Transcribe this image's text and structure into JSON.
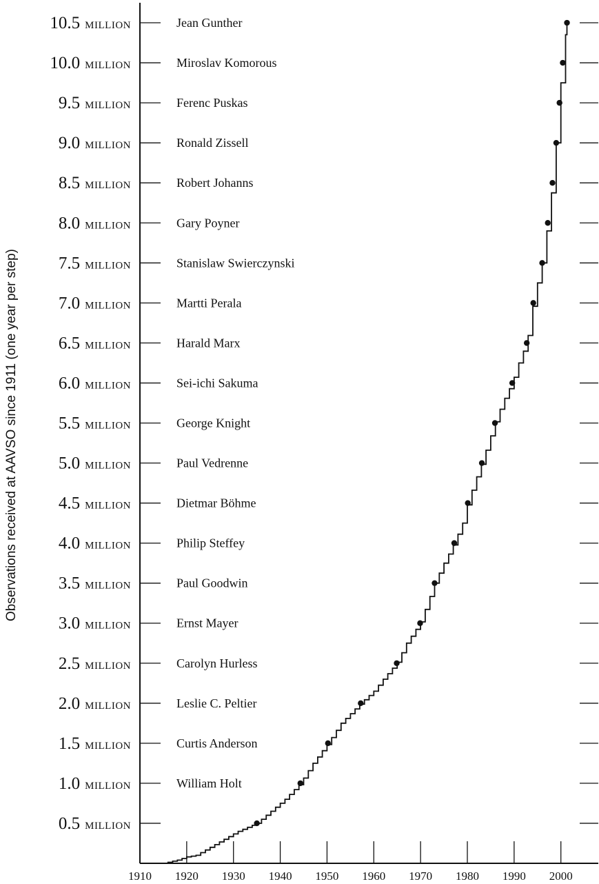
{
  "chart_data": {
    "type": "line",
    "title": "",
    "ylabel": "Observations received at AAVSO since 1911 (one year per step)",
    "xlabel": "",
    "xlim": [
      1910,
      2008
    ],
    "ylim": [
      0,
      10.75
    ],
    "y_unit": "Million",
    "x_ticks": [
      "1910",
      "1920",
      "1930",
      "1940",
      "1950",
      "1960",
      "1970",
      "1980",
      "1990",
      "2000"
    ],
    "y_ticks": [
      {
        "number": "0.5",
        "unit": "Million"
      },
      {
        "number": "1.0",
        "unit": "Million"
      },
      {
        "number": "1.5",
        "unit": "Million"
      },
      {
        "number": "2.0",
        "unit": "Million"
      },
      {
        "number": "2.5",
        "unit": "Million"
      },
      {
        "number": "3.0",
        "unit": "Million"
      },
      {
        "number": "3.5",
        "unit": "Million"
      },
      {
        "number": "4.0",
        "unit": "Million"
      },
      {
        "number": "4.5",
        "unit": "Million"
      },
      {
        "number": "5.0",
        "unit": "Million"
      },
      {
        "number": "5.5",
        "unit": "Million"
      },
      {
        "number": "6.0",
        "unit": "Million"
      },
      {
        "number": "6.5",
        "unit": "Million"
      },
      {
        "number": "7.0",
        "unit": "Million"
      },
      {
        "number": "7.5",
        "unit": "Million"
      },
      {
        "number": "8.0",
        "unit": "Million"
      },
      {
        "number": "8.5",
        "unit": "Million"
      },
      {
        "number": "9.0",
        "unit": "Million"
      },
      {
        "number": "9.5",
        "unit": "Million"
      },
      {
        "number": "10.0",
        "unit": "Million"
      },
      {
        "number": "10.5",
        "unit": "Million"
      }
    ],
    "milestones": [
      {
        "value": 0.5,
        "observer": "William Holt",
        "year": 1935.0
      },
      {
        "value": 1.0,
        "observer": "Curtis Anderson",
        "year": 1944.3
      },
      {
        "value": 1.5,
        "observer": "Leslie C. Peltier",
        "year": 1950.2
      },
      {
        "value": 2.0,
        "observer": "Carolyn Hurless",
        "year": 1957.2
      },
      {
        "value": 2.5,
        "observer": "Ernst Mayer",
        "year": 1964.9
      },
      {
        "value": 3.0,
        "observer": "Paul Goodwin",
        "year": 1969.9
      },
      {
        "value": 3.5,
        "observer": "Philip Steffey",
        "year": 1973.0
      },
      {
        "value": 4.0,
        "observer": "Dietmar Böhme",
        "year": 1977.2
      },
      {
        "value": 4.5,
        "observer": "Paul Vedrenne",
        "year": 1980.1
      },
      {
        "value": 5.0,
        "observer": "George Knight",
        "year": 1983.1
      },
      {
        "value": 5.5,
        "observer": "Sei-ichi Sakuma",
        "year": 1985.9
      },
      {
        "value": 6.0,
        "observer": "Harald Marx",
        "year": 1989.6
      },
      {
        "value": 6.5,
        "observer": "Martti Perala",
        "year": 1992.7
      },
      {
        "value": 7.0,
        "observer": "Stanislaw Swierczynski",
        "year": 1994.1
      },
      {
        "value": 7.5,
        "observer": "Gary Poyner",
        "year": 1996.0
      },
      {
        "value": 8.0,
        "observer": "Robert Johanns",
        "year": 1997.2
      },
      {
        "value": 8.5,
        "observer": "Ronald Zissell",
        "year": 1998.2
      },
      {
        "value": 9.0,
        "observer": "Ferenc Puskas",
        "year": 1999.0
      },
      {
        "value": 9.5,
        "observer": "Miroslav Komorous",
        "year": 1999.7
      },
      {
        "value": 10.0,
        "observer": "Jean Gunther",
        "year": 2000.4
      },
      {
        "value": 10.5,
        "observer": "",
        "year": 2001.3
      }
    ],
    "series": [
      {
        "x": [
          1911,
          1915,
          1918,
          1920,
          1922,
          1925,
          1928,
          1931,
          1935,
          1938,
          1941,
          1944.3,
          1947,
          1950.2,
          1953,
          1957.2,
          1960,
          1962,
          1964.9,
          1967,
          1969.9,
          1971.5,
          1973.0,
          1975,
          1977.2,
          1979,
          1980.1,
          1981.5,
          1983.1,
          1984.5,
          1985.9,
          1987.5,
          1989.6,
          1991,
          1992.7,
          1993.5,
          1994.1,
          1995,
          1996.0,
          1996.7,
          1997.2,
          1997.8,
          1998.2,
          1998.6,
          1999.0,
          1999.4,
          1999.7,
          2000.0,
          2000.4,
          2000.8,
          2001.3
        ],
        "y": [
          0.0,
          0.0,
          0.04,
          0.08,
          0.1,
          0.2,
          0.3,
          0.4,
          0.5,
          0.65,
          0.8,
          1.0,
          1.25,
          1.5,
          1.75,
          2.0,
          2.15,
          2.3,
          2.5,
          2.75,
          3.0,
          3.25,
          3.5,
          3.75,
          4.0,
          4.25,
          4.5,
          4.75,
          5.0,
          5.25,
          5.5,
          5.75,
          6.0,
          6.25,
          6.5,
          6.75,
          7.0,
          7.25,
          7.5,
          7.75,
          8.0,
          8.25,
          8.5,
          8.75,
          9.0,
          9.25,
          9.5,
          9.75,
          10.0,
          10.25,
          10.5
        ]
      }
    ]
  }
}
